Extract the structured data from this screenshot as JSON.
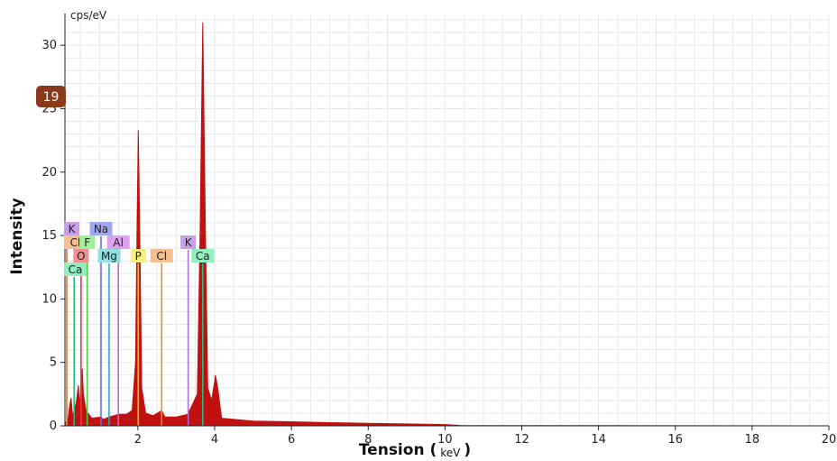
{
  "chart_data": {
    "type": "area",
    "xlabel": "Tension (",
    "xlabel_unit": "keV",
    "xlabel_close": ")",
    "ylabel": "Intensity",
    "y_unit_label": "cps/eV",
    "xlim": [
      0.1,
      20
    ],
    "ylim": [
      0,
      32.5
    ],
    "x_ticks": [
      2,
      4,
      6,
      8,
      10,
      12,
      14,
      16,
      18,
      20
    ],
    "y_ticks": [
      0,
      5,
      10,
      15,
      20,
      25,
      30
    ],
    "grid": true,
    "spectrum_color": "#c01010",
    "spectrum_points": [
      [
        0.1,
        0.2
      ],
      [
        0.18,
        0.5
      ],
      [
        0.22,
        1.5
      ],
      [
        0.26,
        2.2
      ],
      [
        0.3,
        0.8
      ],
      [
        0.36,
        1.4
      ],
      [
        0.4,
        2.0
      ],
      [
        0.45,
        3.2
      ],
      [
        0.48,
        1.4
      ],
      [
        0.52,
        3.5
      ],
      [
        0.55,
        4.5
      ],
      [
        0.58,
        2.5
      ],
      [
        0.65,
        1.2
      ],
      [
        0.8,
        0.6
      ],
      [
        1.04,
        0.7
      ],
      [
        1.1,
        0.5
      ],
      [
        1.25,
        0.7
      ],
      [
        1.5,
        0.9
      ],
      [
        1.7,
        0.9
      ],
      [
        1.85,
        1.2
      ],
      [
        1.94,
        5.0
      ],
      [
        1.98,
        16.0
      ],
      [
        2.01,
        23.3
      ],
      [
        2.05,
        15.0
      ],
      [
        2.1,
        3.0
      ],
      [
        2.2,
        1.0
      ],
      [
        2.4,
        0.8
      ],
      [
        2.62,
        1.2
      ],
      [
        2.7,
        0.7
      ],
      [
        3.0,
        0.7
      ],
      [
        3.3,
        0.9
      ],
      [
        3.55,
        2.5
      ],
      [
        3.62,
        15.0
      ],
      [
        3.69,
        31.8
      ],
      [
        3.76,
        15.0
      ],
      [
        3.82,
        3.0
      ],
      [
        3.92,
        2.0
      ],
      [
        4.0,
        3.5
      ],
      [
        4.02,
        4.0
      ],
      [
        4.08,
        3.0
      ],
      [
        4.18,
        0.6
      ],
      [
        5.0,
        0.38
      ],
      [
        6.0,
        0.32
      ],
      [
        7.0,
        0.25
      ],
      [
        8.0,
        0.2
      ],
      [
        9.0,
        0.15
      ],
      [
        10.0,
        0.1
      ],
      [
        10.4,
        0.03
      ],
      [
        20.0,
        0.0
      ]
    ],
    "element_tags": [
      {
        "label": "K",
        "energy": 0.05,
        "color": "#c8a0e8",
        "line_color": "#b070e0",
        "row": 1
      },
      {
        "label": "Na",
        "energy": 1.04,
        "color": "#a0a8f0",
        "line_color": "#6a70e0",
        "row": 1
      },
      {
        "label": "Cl",
        "energy": 0.05,
        "color": "#f5c090",
        "line_color": "#f08a30",
        "row": 2
      },
      {
        "label": "F",
        "energy": 0.68,
        "color": "#9ef09a",
        "line_color": "#40d040",
        "row": 2
      },
      {
        "label": "Al",
        "energy": 1.49,
        "color": "#e0a0f0",
        "line_color": "#d060e0",
        "row": 2
      },
      {
        "label": "K",
        "energy": 3.31,
        "color": "#c8a0e8",
        "line_color": "#b070e0",
        "row": 2
      },
      {
        "label": "O",
        "energy": 0.52,
        "color": "#f09090",
        "line_color": "#e04040",
        "row": 3
      },
      {
        "label": "Mg",
        "energy": 1.25,
        "color": "#90e0e0",
        "line_color": "#20b0d0",
        "row": 3
      },
      {
        "label": "P",
        "energy": 2.01,
        "color": "#f8f080",
        "line_color": "#e8d020",
        "row": 3
      },
      {
        "label": "Cl",
        "energy": 2.62,
        "color": "#f5c090",
        "line_color": "#f08a30",
        "row": 3
      },
      {
        "label": "Ca",
        "energy": 3.69,
        "color": "#90f0c0",
        "line_color": "#20c080",
        "row": 3
      },
      {
        "label": "Ca",
        "energy": 0.34,
        "color": "#90f0c0",
        "line_color": "#20c080",
        "row": 4
      }
    ]
  },
  "badge": {
    "value": "19",
    "color": "#8a3a1a"
  }
}
